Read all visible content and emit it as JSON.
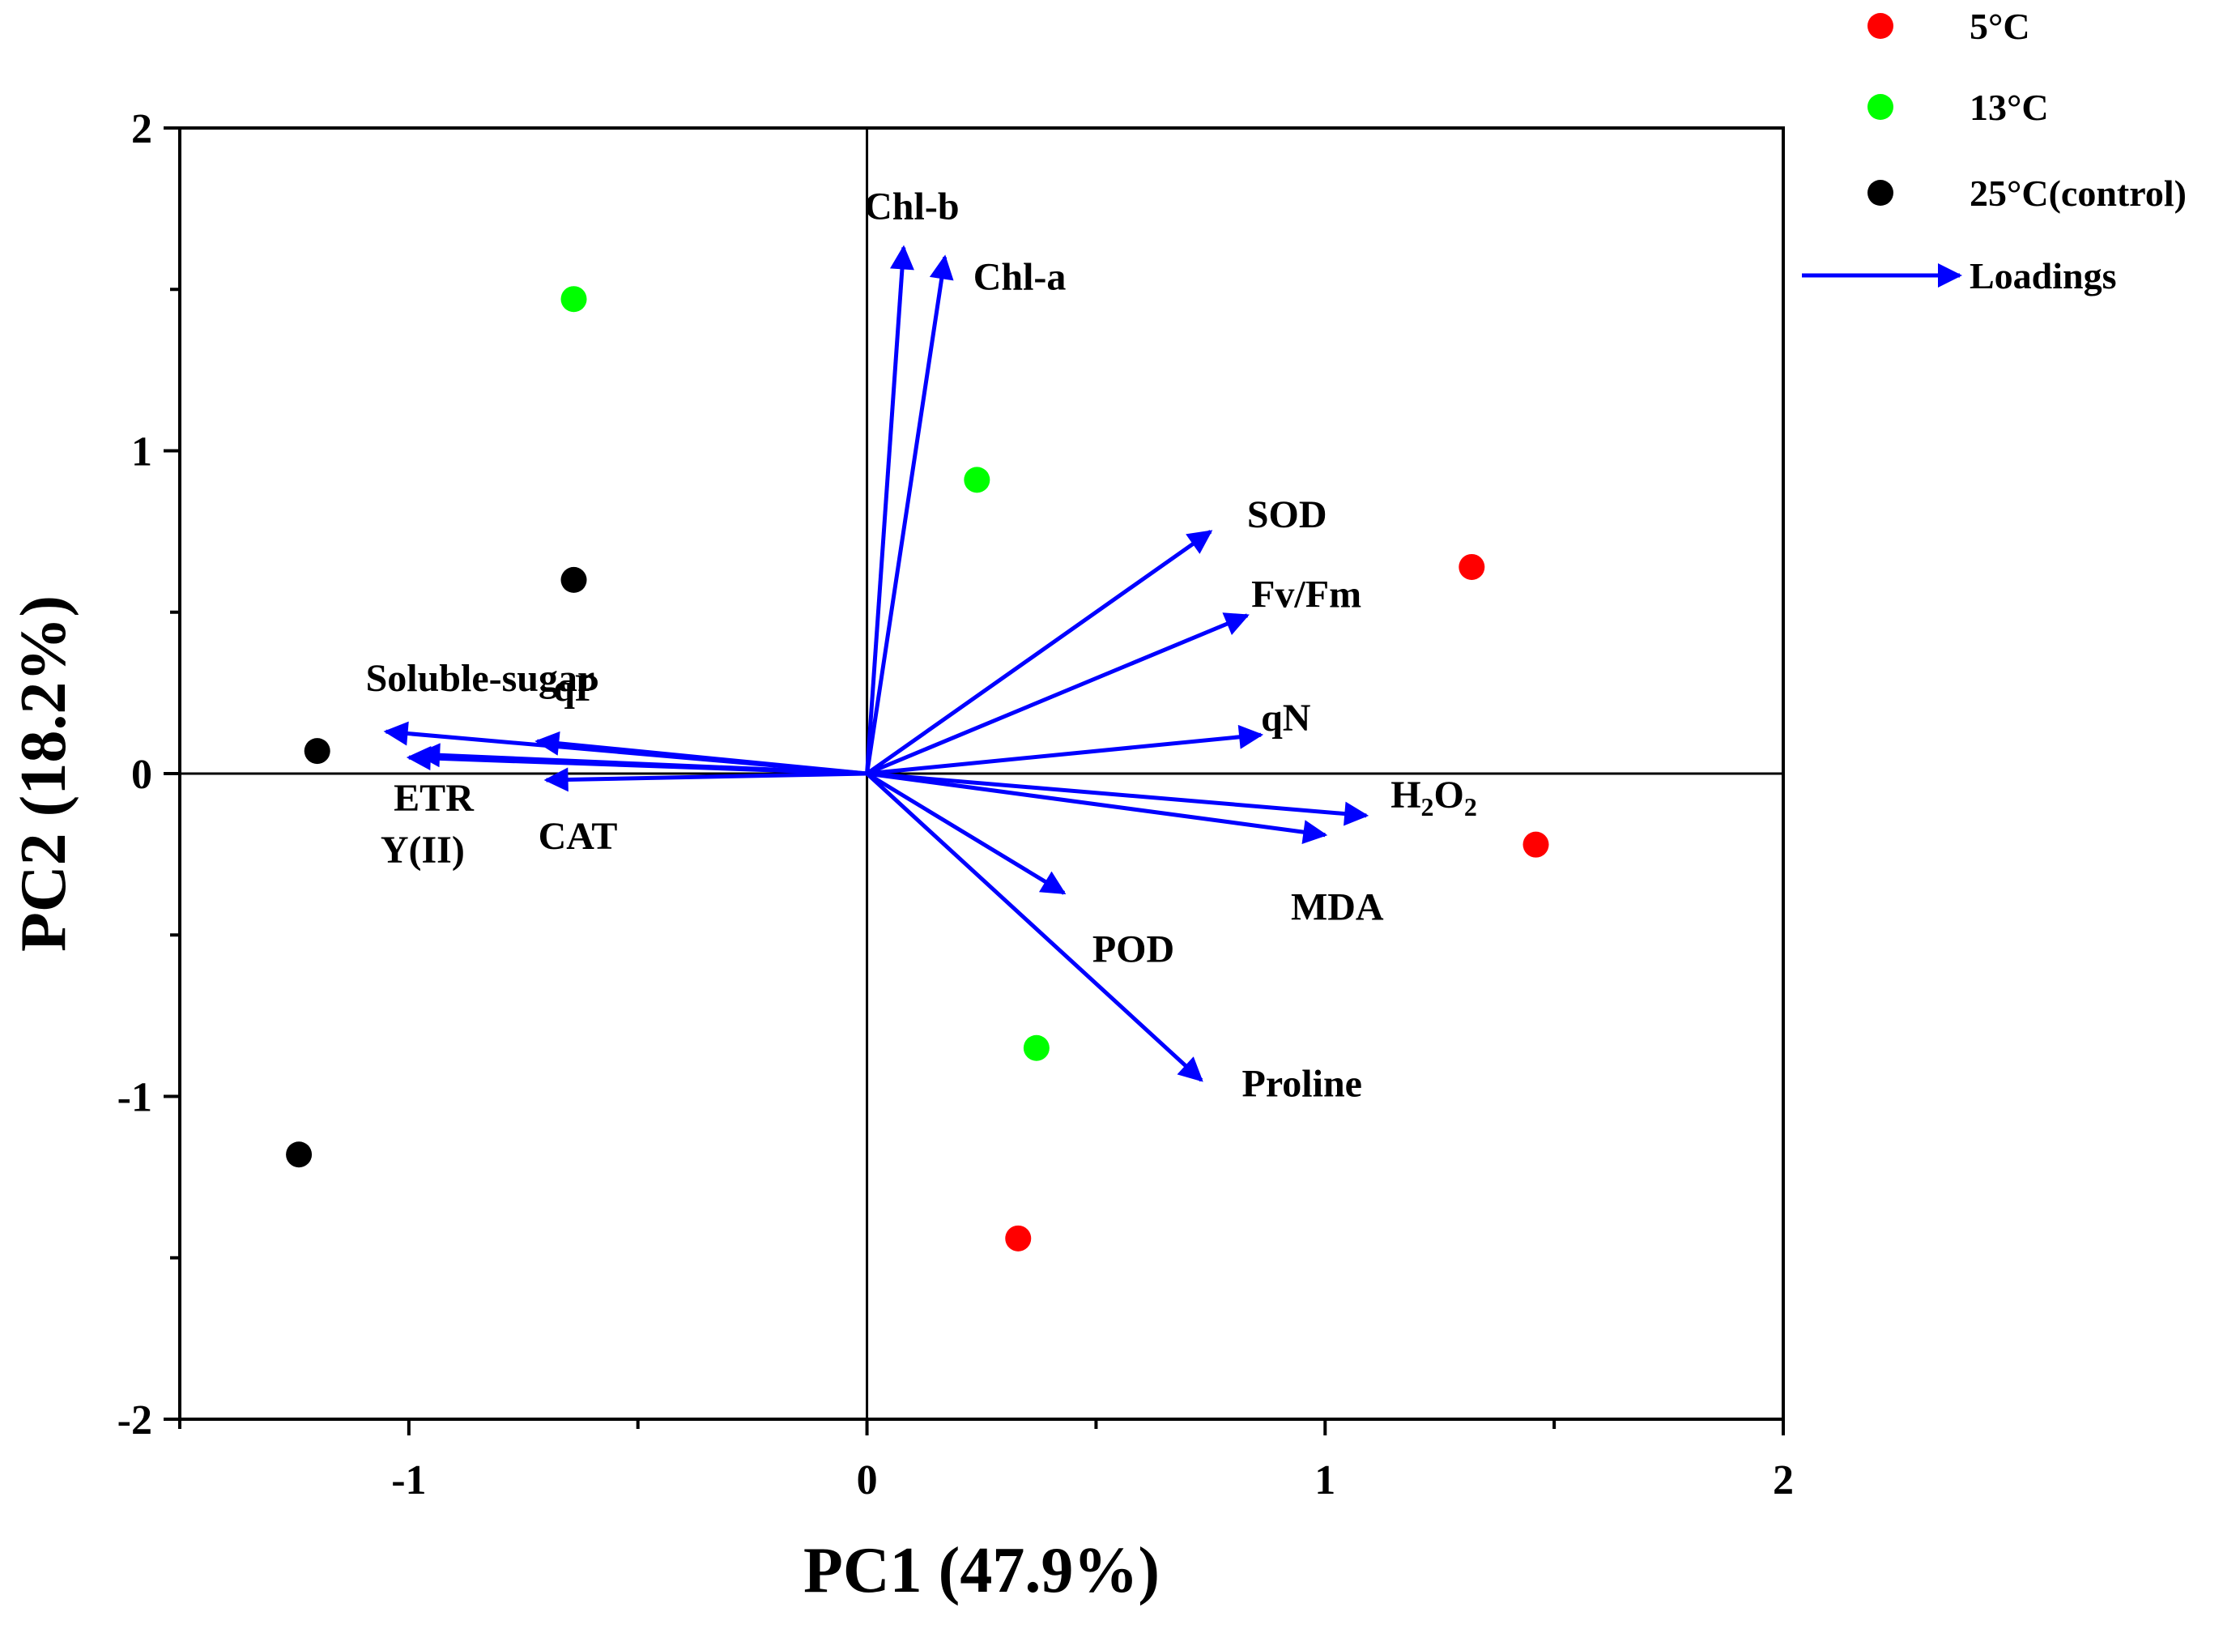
{
  "chart_data": {
    "type": "scatter",
    "subtype": "pca-biplot",
    "xlabel": "PC1 (47.9%)",
    "ylabel": "PC2 (18.2%)",
    "xlim": [
      -1.5,
      2
    ],
    "ylim": [
      -2,
      2
    ],
    "x_ticks": [
      -1,
      0,
      1,
      2
    ],
    "y_ticks": [
      -2,
      -1,
      0,
      1,
      2
    ],
    "x_tick_labels": [
      "-1",
      "0",
      "1",
      "2"
    ],
    "y_tick_labels": [
      "-2",
      "-1",
      "0",
      "1",
      "2"
    ],
    "legend_position": "top-right",
    "series": [
      {
        "name": "5°C",
        "color": "#ff0000",
        "points": [
          {
            "x": 1.32,
            "y": 0.64
          },
          {
            "x": 1.46,
            "y": -0.22
          },
          {
            "x": 0.33,
            "y": -1.44
          }
        ]
      },
      {
        "name": "13°C",
        "color": "#00ff00",
        "points": [
          {
            "x": -0.64,
            "y": 1.47
          },
          {
            "x": 0.24,
            "y": 0.91
          },
          {
            "x": 0.37,
            "y": -0.85
          }
        ]
      },
      {
        "name": "25°C(control)",
        "color": "#000000",
        "points": [
          {
            "x": -0.64,
            "y": 0.6
          },
          {
            "x": -1.2,
            "y": 0.07
          },
          {
            "x": -1.24,
            "y": -1.18
          }
        ]
      }
    ],
    "loadings": {
      "name": "Loadings",
      "color": "#0000ff",
      "vectors": [
        {
          "label": "Chl-b",
          "x": 0.08,
          "y": 1.63
        },
        {
          "label": "Chl-a",
          "x": 0.17,
          "y": 1.6
        },
        {
          "label": "SOD",
          "x": 0.75,
          "y": 0.75
        },
        {
          "label": "Fv/Fm",
          "x": 0.83,
          "y": 0.49
        },
        {
          "label": "qN",
          "x": 0.86,
          "y": 0.12
        },
        {
          "label": "H2O2",
          "x": 1.09,
          "y": -0.13
        },
        {
          "label": "MDA",
          "x": 1.0,
          "y": -0.19
        },
        {
          "label": "POD",
          "x": 0.43,
          "y": -0.37
        },
        {
          "label": "Proline",
          "x": 0.73,
          "y": -0.95
        },
        {
          "label": "Soluble-sugar",
          "x": -1.05,
          "y": 0.13
        },
        {
          "label": "qP",
          "x": -0.72,
          "y": 0.1
        },
        {
          "label": "ETR",
          "x": -0.98,
          "y": 0.06
        },
        {
          "label": "Y(II)",
          "x": -1.0,
          "y": 0.05
        },
        {
          "label": "CAT",
          "x": -0.7,
          "y": -0.02
        }
      ]
    }
  }
}
